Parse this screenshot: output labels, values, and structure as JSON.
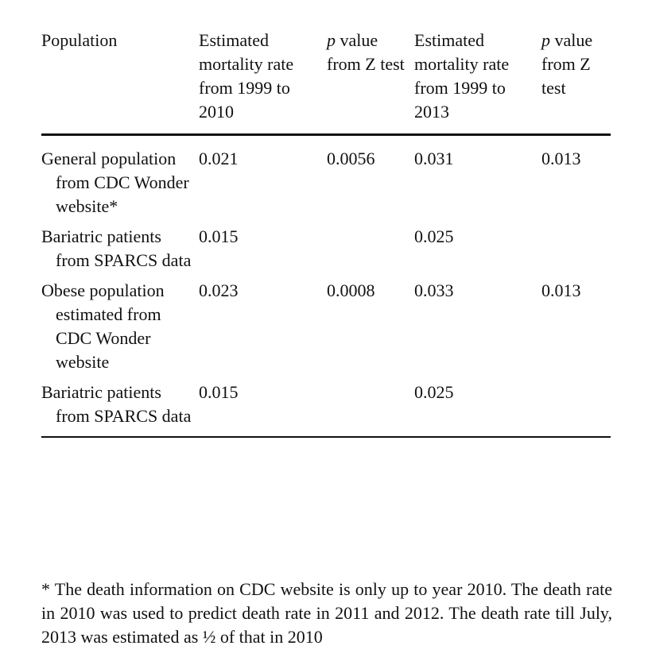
{
  "table": {
    "headers": [
      {
        "prefix": "",
        "text": "Population"
      },
      {
        "prefix": "",
        "text": "Estimated mortality rate from 1999 to 2010"
      },
      {
        "prefix": "p",
        "text": " value from Z test"
      },
      {
        "prefix": "",
        "text": "Estimated mortality rate from 1999 to 2013"
      },
      {
        "prefix": "p",
        "text": " value from Z test"
      }
    ],
    "rows": [
      [
        "General population from CDC Wonder website*",
        "0.021",
        "0.0056",
        "0.031",
        "0.013"
      ],
      [
        "Bariatric patients from SPARCS data",
        "0.015",
        "",
        "0.025",
        ""
      ],
      [
        "Obese population estimated from CDC Wonder website",
        "0.023",
        "0.0008",
        "0.033",
        "0.013"
      ],
      [
        "Bariatric patients from SPARCS data",
        "0.015",
        "",
        "0.025",
        ""
      ]
    ]
  },
  "footnote": "* The death information on CDC website is only up to year 2010. The death rate in 2010 was used to predict death rate in 2011 and 2012. The death rate till July, 2013 was estimated as ½ of that in 2010"
}
